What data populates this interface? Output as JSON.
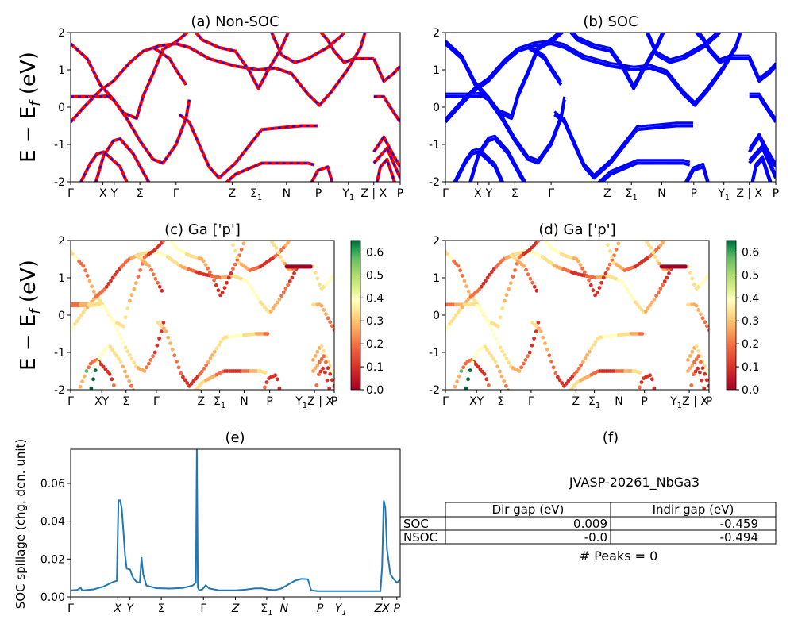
{
  "figure": {
    "ylabel_band": "E − E_f (eV)",
    "ylabel_band_text": "E − E",
    "ylabel_band_sub": "f",
    "ylabel_band_unit": " (eV)"
  },
  "panels": {
    "a": {
      "title": "(a) Non-SOC"
    },
    "b": {
      "title": "(b) SOC"
    },
    "c": {
      "title": "(c)  Ga ['p']"
    },
    "d": {
      "title": "(d) Ga ['p']"
    },
    "e": {
      "title": "(e)",
      "ylabel": "SOC spillage (chg. den. unit)"
    },
    "f": {
      "title": "(f)",
      "material": "JVASP-20261_NbGa3",
      "table": {
        "headers": [
          "",
          "Dir gap (eV)",
          "Indir gap (eV)"
        ],
        "rows": [
          [
            "SOC",
            "0.009",
            "-0.459"
          ],
          [
            "NSOC",
            "-0.0",
            "-0.494"
          ]
        ]
      },
      "peaks_text": "# Peaks = 0"
    }
  },
  "kpath_labels_ab": [
    "Γ",
    "X",
    "Y",
    "Σ",
    "Γ",
    "Z",
    "Σ1",
    "N",
    "P",
    "Y1",
    "Z | X",
    "P"
  ],
  "kpath_labels_cd": [
    "Γ",
    "XY",
    "Σ",
    "Γ",
    "Z",
    "Σ1",
    "N",
    "P",
    "Y1Z | X",
    "P"
  ],
  "kpath_labels_e": [
    "Γ",
    "X",
    "Y",
    "Σ",
    "Γ",
    "Z",
    "Σ1",
    "N",
    "P",
    "Y1",
    "ZX",
    "P"
  ],
  "colorbar": {
    "ticks": [
      "0.0",
      "0.1",
      "0.2",
      "0.3",
      "0.4",
      "0.5",
      "0.6"
    ],
    "cmap": "RdYlGn"
  },
  "chart_data": [
    {
      "type": "line",
      "panel": "a",
      "title": "(a) Non-SOC",
      "ylabel": "E − E_f (eV)",
      "ylim": [
        -2,
        2
      ],
      "yticks": [
        -2,
        -1,
        0,
        1,
        2
      ],
      "colors": {
        "nsoc": "#ff0000",
        "soc_dash": "#0000ff"
      }
    },
    {
      "type": "line",
      "panel": "b",
      "title": "(b) SOC",
      "ylim": [
        -2,
        2
      ],
      "yticks": [
        -2,
        -1,
        0,
        1,
        2
      ],
      "colors": {
        "soc": "#0000ff"
      }
    },
    {
      "type": "scatter",
      "panel": "c",
      "title": "(c)  Ga ['p']",
      "ylim": [
        -2,
        2
      ],
      "color_range": [
        0.0,
        0.65
      ]
    },
    {
      "type": "scatter",
      "panel": "d",
      "title": "(d) Ga ['p']",
      "ylim": [
        -2,
        2
      ],
      "color_range": [
        0.0,
        0.65
      ]
    },
    {
      "type": "line",
      "panel": "e",
      "title": "(e)",
      "ylabel": "SOC spillage (chg. den. unit)",
      "ylim": [
        0,
        0.078
      ],
      "yticks": [
        0.0,
        0.02,
        0.04,
        0.06
      ],
      "ytick_labels": [
        "0.00",
        "0.02",
        "0.04",
        "0.06"
      ],
      "color": "#1f77b4",
      "x": [
        0,
        0.02,
        0.03,
        0.035,
        0.04,
        0.07,
        0.1,
        0.13,
        0.14,
        0.145,
        0.15,
        0.155,
        0.16,
        0.165,
        0.17,
        0.18,
        0.185,
        0.19,
        0.2,
        0.21,
        0.215,
        0.22,
        0.23,
        0.26,
        0.3,
        0.34,
        0.37,
        0.38,
        0.383,
        0.386,
        0.39,
        0.4,
        0.41,
        0.42,
        0.45,
        0.5,
        0.53,
        0.56,
        0.58,
        0.6,
        0.62,
        0.64,
        0.68,
        0.7,
        0.72,
        0.73,
        0.75,
        0.8,
        0.85,
        0.9,
        0.94,
        0.945,
        0.95,
        0.955,
        0.96,
        0.97,
        0.98,
        0.99,
        1.0
      ],
      "y": [
        0.0035,
        0.0037,
        0.0048,
        0.0035,
        0.0035,
        0.004,
        0.0055,
        0.008,
        0.0085,
        0.051,
        0.051,
        0.047,
        0.035,
        0.022,
        0.015,
        0.0145,
        0.012,
        0.01,
        0.008,
        0.0075,
        0.021,
        0.012,
        0.006,
        0.0046,
        0.0044,
        0.0047,
        0.006,
        0.0075,
        0.078,
        0.005,
        0.0035,
        0.004,
        0.0062,
        0.0045,
        0.0035,
        0.0035,
        0.0038,
        0.0045,
        0.0045,
        0.0038,
        0.0036,
        0.0045,
        0.0085,
        0.0095,
        0.0093,
        0.0035,
        0.003,
        0.003,
        0.003,
        0.003,
        0.003,
        0.0155,
        0.051,
        0.047,
        0.025,
        0.012,
        0.0095,
        0.0075,
        0.0092
      ]
    },
    {
      "type": "table",
      "panel": "f",
      "headers": [
        "",
        "Dir gap (eV)",
        "Indir gap (eV)"
      ],
      "rows": [
        [
          "SOC",
          0.009,
          -0.459
        ],
        [
          "NSOC",
          -0.0,
          -0.494
        ]
      ]
    }
  ]
}
